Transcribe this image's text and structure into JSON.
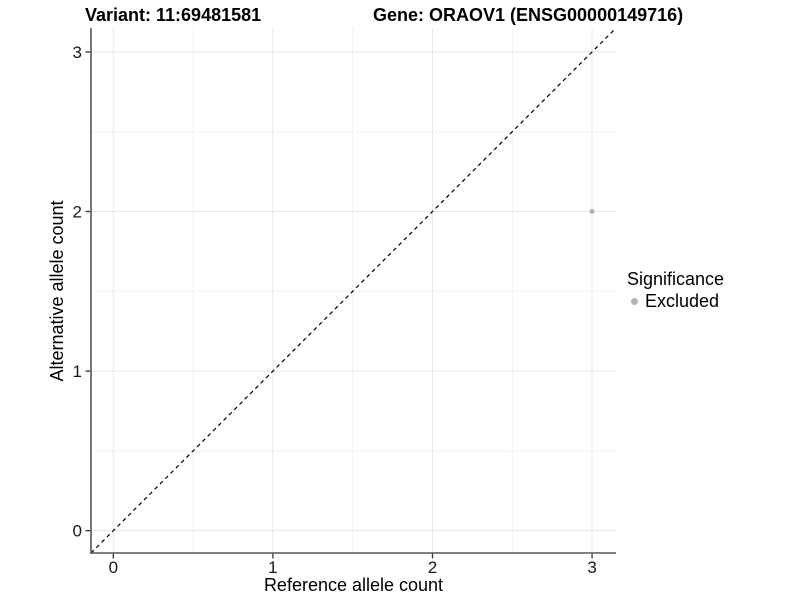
{
  "header": {
    "variant_title": "Variant: 11:69481581",
    "gene_title": "Gene: ORAOV1 (ENSG00000149716)"
  },
  "chart_data": {
    "type": "scatter",
    "title_left": "Variant: 11:69481581",
    "title_right": "Gene: ORAOV1 (ENSG00000149716)",
    "xlabel": "Reference allele count",
    "ylabel": "Alternative allele count",
    "xlim": [
      -0.14,
      3.15
    ],
    "ylim": [
      -0.14,
      3.15
    ],
    "x_ticks": [
      0,
      1,
      2,
      3
    ],
    "y_ticks": [
      0,
      1,
      2,
      3
    ],
    "x_minor_ticks": [
      0.5,
      1.5,
      2.5
    ],
    "y_minor_ticks": [
      0.5,
      1.5,
      2.5
    ],
    "grid": "on",
    "points": [
      {
        "x": 3,
        "y": 2,
        "significance": "Excluded"
      }
    ],
    "identity_line": {
      "slope": 1,
      "intercept": 0,
      "style": "dashed"
    },
    "legend": {
      "title": "Significance",
      "position": "right",
      "entries": [
        {
          "label": "Excluded",
          "color": "#b5b5b5"
        }
      ]
    }
  },
  "colors": {
    "background": "#ffffff",
    "point": "#b5b5b5",
    "grid_major": "#e7e7e7",
    "grid_minor": "#f2f2f2",
    "axis_line": "#555555",
    "tick_mark": "#333333",
    "tick_label": "#1a1a1a",
    "dashed_line": "#000000"
  }
}
